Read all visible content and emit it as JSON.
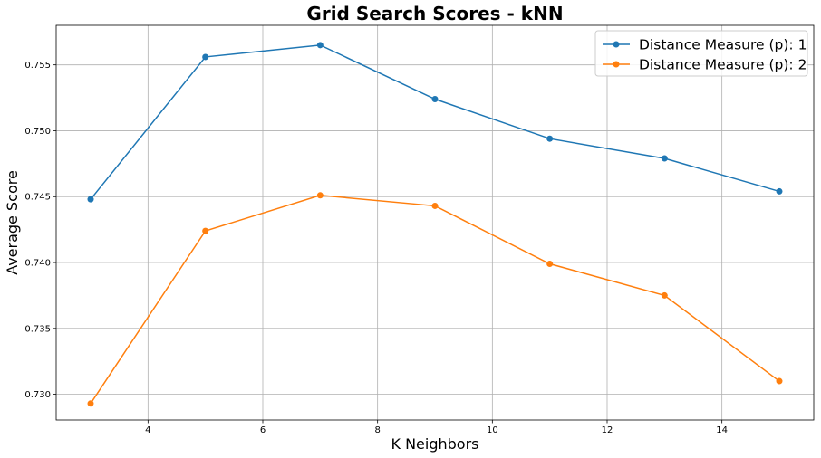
{
  "chart_data": {
    "type": "line",
    "title": "Grid Search Scores - kNN",
    "xlabel": "K Neighbors",
    "ylabel": "Average Score",
    "x": [
      3,
      5,
      7,
      9,
      11,
      13,
      15
    ],
    "xlim": [
      2.4,
      15.6
    ],
    "ylim": [
      0.72805,
      0.758
    ],
    "xticks": [
      4,
      6,
      8,
      10,
      12,
      14
    ],
    "yticks": [
      0.73,
      0.735,
      0.74,
      0.745,
      0.75,
      0.755
    ],
    "xtick_labels": [
      "4",
      "6",
      "8",
      "10",
      "12",
      "14"
    ],
    "ytick_labels": [
      "0.730",
      "0.735",
      "0.740",
      "0.745",
      "0.750",
      "0.755"
    ],
    "grid": true,
    "legend_position": "top-right",
    "series": [
      {
        "name": "Distance Measure (p): 1",
        "color": "#1f77b4",
        "marker": "circle",
        "values": [
          0.7448,
          0.7556,
          0.7565,
          0.7524,
          0.7494,
          0.7479,
          0.7454
        ]
      },
      {
        "name": "Distance Measure (p): 2",
        "color": "#ff7f0e",
        "marker": "circle",
        "values": [
          0.7293,
          0.7424,
          0.7451,
          0.7443,
          0.7399,
          0.7375,
          0.731
        ]
      }
    ]
  }
}
